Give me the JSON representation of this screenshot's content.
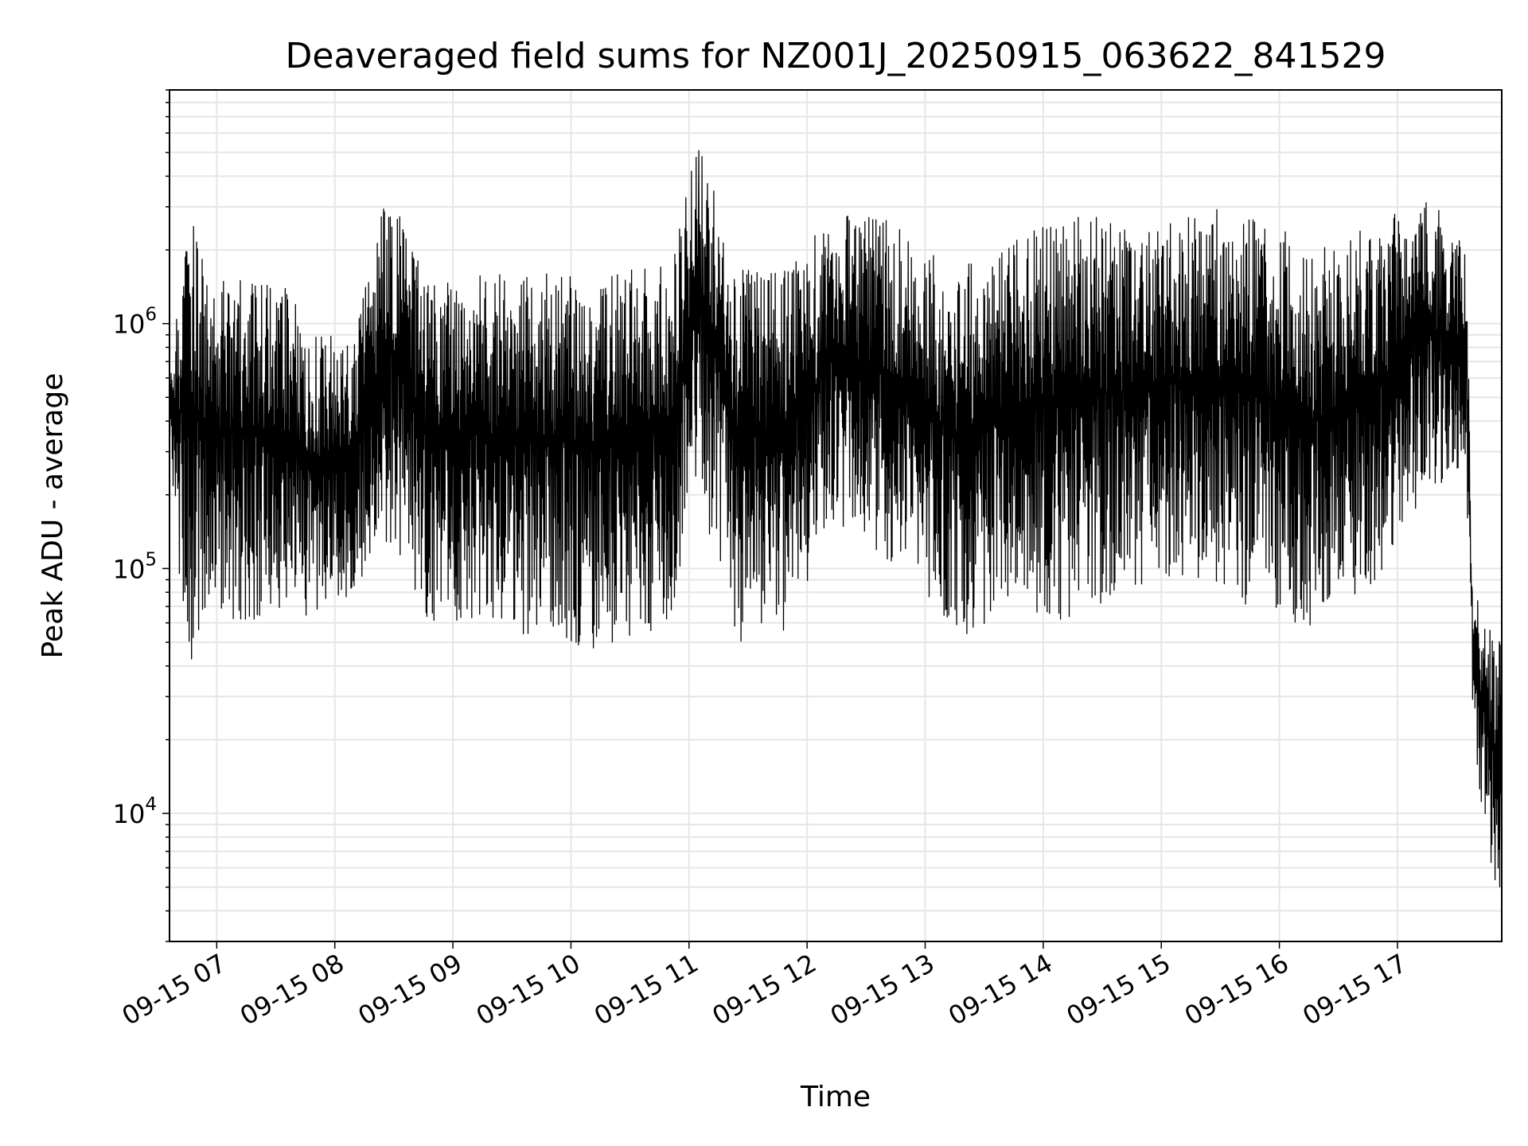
{
  "chart_data": {
    "type": "line",
    "title": "Deaveraged field sums for NZ001J_20250915_063622_841529",
    "xlabel": "Time",
    "ylabel": "Peak ADU - average",
    "y_scale": "log",
    "ylim": [
      3000,
      9000000
    ],
    "xlim": [
      "2025-09-15 06:36",
      "2025-09-15 17:53"
    ],
    "grid": true,
    "x_tick_labels": [
      "09-15 07",
      "09-15 08",
      "09-15 09",
      "09-15 10",
      "09-15 11",
      "09-15 12",
      "09-15 13",
      "09-15 14",
      "09-15 15",
      "09-15 16",
      "09-15 17"
    ],
    "x_tick_times": [
      "2025-09-15 07:00",
      "2025-09-15 08:00",
      "2025-09-15 09:00",
      "2025-09-15 10:00",
      "2025-09-15 11:00",
      "2025-09-15 12:00",
      "2025-09-15 13:00",
      "2025-09-15 14:00",
      "2025-09-15 15:00",
      "2025-09-15 16:00",
      "2025-09-15 17:00"
    ],
    "y_ticks": [
      {
        "value": 10000,
        "base": "10",
        "exp": "4"
      },
      {
        "value": 100000,
        "base": "10",
        "exp": "5"
      },
      {
        "value": 1000000,
        "base": "10",
        "exp": "6"
      }
    ],
    "series": [
      {
        "color": "#000000",
        "envelope": [
          {
            "t": "2025-09-15 06:36",
            "lo": 300000,
            "hi": 550000
          },
          {
            "t": "2025-09-15 06:45",
            "lo": 35000,
            "hi": 3500000
          },
          {
            "t": "2025-09-15 06:55",
            "lo": 70000,
            "hi": 1500000
          },
          {
            "t": "2025-09-15 07:10",
            "lo": 60000,
            "hi": 1500000
          },
          {
            "t": "2025-09-15 07:30",
            "lo": 60000,
            "hi": 1600000
          },
          {
            "t": "2025-09-15 07:50",
            "lo": 65000,
            "hi": 900000
          },
          {
            "t": "2025-09-15 08:10",
            "lo": 80000,
            "hi": 900000
          },
          {
            "t": "2025-09-15 08:27",
            "lo": 130000,
            "hi": 3700000
          },
          {
            "t": "2025-09-15 08:45",
            "lo": 60000,
            "hi": 1600000
          },
          {
            "t": "2025-09-15 09:30",
            "lo": 55000,
            "hi": 1600000
          },
          {
            "t": "2025-09-15 10:10",
            "lo": 45000,
            "hi": 1600000
          },
          {
            "t": "2025-09-15 10:50",
            "lo": 55000,
            "hi": 1800000
          },
          {
            "t": "2025-09-15 11:05",
            "lo": 200000,
            "hi": 6500000
          },
          {
            "t": "2025-09-15 11:25",
            "lo": 50000,
            "hi": 1700000
          },
          {
            "t": "2025-09-15 11:50",
            "lo": 55000,
            "hi": 1700000
          },
          {
            "t": "2025-09-15 12:15",
            "lo": 150000,
            "hi": 3000000
          },
          {
            "t": "2025-09-15 12:45",
            "lo": 100000,
            "hi": 2600000
          },
          {
            "t": "2025-09-15 13:15",
            "lo": 50000,
            "hi": 1700000
          },
          {
            "t": "2025-09-15 13:45",
            "lo": 70000,
            "hi": 2200000
          },
          {
            "t": "2025-09-15 14:15",
            "lo": 60000,
            "hi": 2900000
          },
          {
            "t": "2025-09-15 14:45",
            "lo": 80000,
            "hi": 2500000
          },
          {
            "t": "2025-09-15 15:15",
            "lo": 90000,
            "hi": 2800000
          },
          {
            "t": "2025-09-15 15:45",
            "lo": 70000,
            "hi": 3100000
          },
          {
            "t": "2025-09-15 16:15",
            "lo": 55000,
            "hi": 2000000
          },
          {
            "t": "2025-09-15 16:45",
            "lo": 80000,
            "hi": 2500000
          },
          {
            "t": "2025-09-15 17:15",
            "lo": 200000,
            "hi": 3300000
          },
          {
            "t": "2025-09-15 17:35",
            "lo": 250000,
            "hi": 2200000
          },
          {
            "t": "2025-09-15 17:38",
            "lo": 25000,
            "hi": 90000
          },
          {
            "t": "2025-09-15 17:45",
            "lo": 7000,
            "hi": 60000
          },
          {
            "t": "2025-09-15 17:53",
            "lo": 4000,
            "hi": 50000
          }
        ]
      }
    ]
  }
}
